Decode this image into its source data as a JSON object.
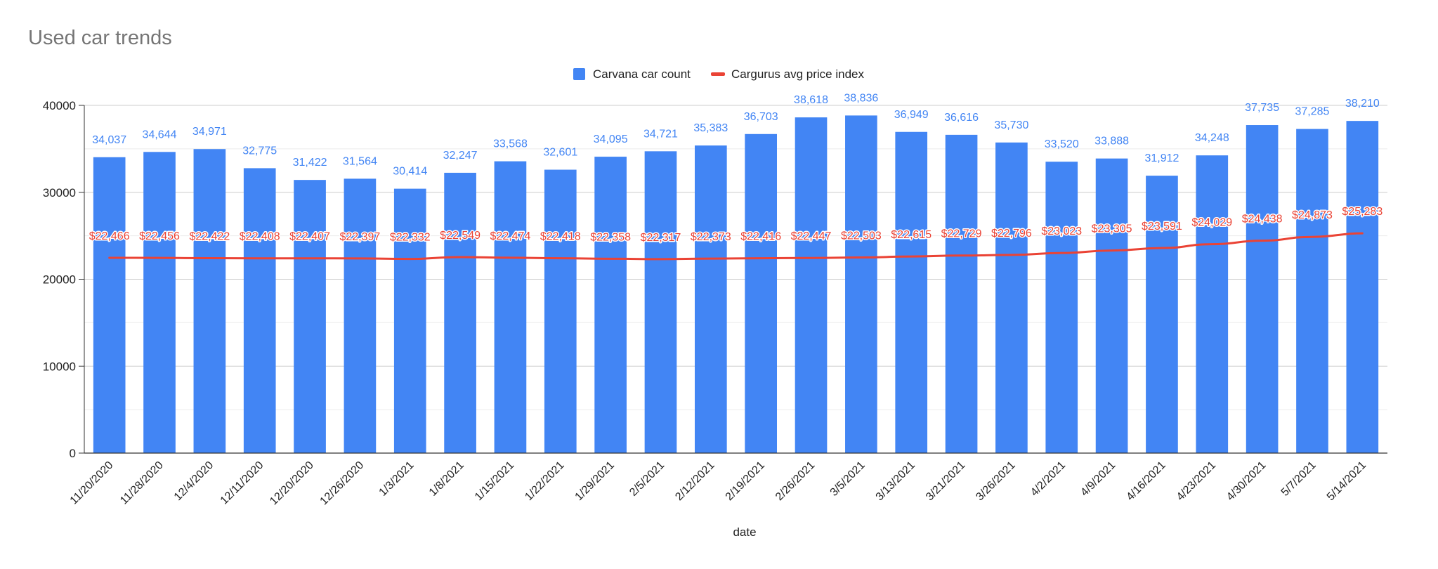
{
  "chart_data": {
    "type": "bar",
    "title": "Used car trends",
    "xlabel": "date",
    "ylabel": "",
    "ylim": [
      0,
      40000
    ],
    "yticks": [
      0,
      10000,
      20000,
      30000,
      40000
    ],
    "ytick_labels": [
      "0",
      "10000",
      "20000",
      "30000",
      "40000"
    ],
    "grid": true,
    "legend_position": "top",
    "categories": [
      "11/20/2020",
      "11/28/2020",
      "12/4/2020",
      "12/11/2020",
      "12/20/2020",
      "12/26/2020",
      "1/3/2021",
      "1/8/2021",
      "1/15/2021",
      "1/22/2021",
      "1/29/2021",
      "2/5/2021",
      "2/12/2021",
      "2/19/2021",
      "2/26/2021",
      "3/5/2021",
      "3/13/2021",
      "3/21/2021",
      "3/26/2021",
      "4/2/2021",
      "4/9/2021",
      "4/16/2021",
      "4/23/2021",
      "4/30/2021",
      "5/7/2021",
      "5/14/2021"
    ],
    "series": [
      {
        "name": "Carvana car count",
        "type": "bar",
        "color": "#4285f4",
        "label_color": "#4285f4",
        "values": [
          34037,
          34644,
          34971,
          32775,
          31422,
          31564,
          30414,
          32247,
          33568,
          32601,
          34095,
          34721,
          35383,
          36703,
          38618,
          38836,
          36949,
          36616,
          35730,
          33520,
          33888,
          31912,
          34248,
          37735,
          37285,
          38210
        ],
        "labels": [
          "34,037",
          "34,644",
          "34,971",
          "32,775",
          "31,422",
          "31,564",
          "30,414",
          "32,247",
          "33,568",
          "32,601",
          "34,095",
          "34,721",
          "35,383",
          "36,703",
          "38,618",
          "38,836",
          "36,949",
          "36,616",
          "35,730",
          "33,520",
          "33,888",
          "31,912",
          "34,248",
          "37,735",
          "37,285",
          "38,210"
        ]
      },
      {
        "name": "Cargurus avg price index",
        "type": "line",
        "color": "#ea4335",
        "label_color": "#ea4335",
        "values": [
          22466,
          22456,
          22422,
          22408,
          22407,
          22397,
          22332,
          22549,
          22474,
          22418,
          22358,
          22317,
          22373,
          22416,
          22447,
          22503,
          22615,
          22729,
          22796,
          23023,
          23305,
          23591,
          24029,
          24438,
          24873,
          25283
        ],
        "labels": [
          "$22,466",
          "$22,456",
          "$22,422",
          "$22,408",
          "$22,407",
          "$22,397",
          "$22,332",
          "$22,549",
          "$22,474",
          "$22,418",
          "$22,358",
          "$22,317",
          "$22,373",
          "$22,416",
          "$22,447",
          "$22,503",
          "$22,615",
          "$22,729",
          "$22,796",
          "$23,023",
          "$23,305",
          "$23,591",
          "$24,029",
          "$24,438",
          "$24,873",
          "$25,283"
        ]
      }
    ]
  }
}
